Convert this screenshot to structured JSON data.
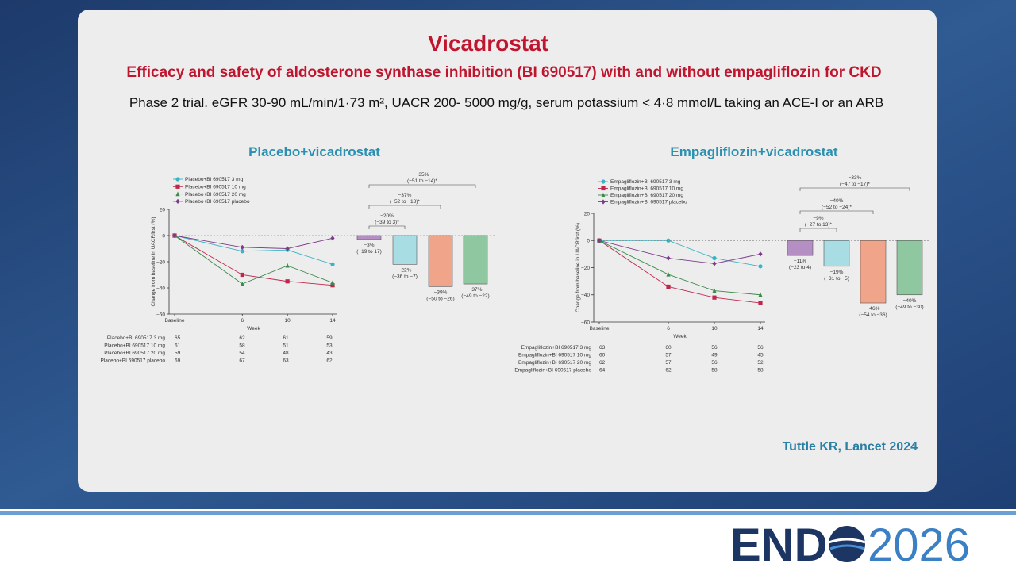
{
  "title": "Vicadrostat",
  "subtitle": "Efficacy and safety of aldosterone synthase inhibition (BI 690517) with and without empagliflozin for CKD",
  "description": "Phase 2 trial. eGFR 30-90 mL/min/1·73 m², UACR 200- 5000 mg/g, serum potassium < 4·8 mmol/L taking an ACE-I or an ARB",
  "citation": "Tuttle KR, Lancet 2024",
  "logo": {
    "left": "END",
    "right": "2026"
  },
  "panels": [
    {
      "heading": "Placebo+vicadrostat",
      "at_risk": [
        {
          "label": "Placebo+BI 690517 3 mg",
          "values": [
            65,
            62,
            61,
            59
          ]
        },
        {
          "label": "Placebo+BI 690517 10 mg",
          "values": [
            61,
            58,
            51,
            53
          ]
        },
        {
          "label": "Placebo+BI 690517 20 mg",
          "values": [
            59,
            54,
            48,
            43
          ]
        },
        {
          "label": "Placebo+BI 690517 placebo",
          "values": [
            69,
            67,
            63,
            62
          ]
        }
      ]
    },
    {
      "heading": "Empagliflozin+vicadrostat",
      "at_risk": [
        {
          "label": "Empagliflozin+BI 690517 3 mg",
          "values": [
            63,
            60,
            56,
            56
          ]
        },
        {
          "label": "Empagliflozin+BI 690517 10 mg",
          "values": [
            60,
            57,
            49,
            45
          ]
        },
        {
          "label": "Empagliflozin+BI 690517 20 mg",
          "values": [
            62,
            57,
            56,
            52
          ]
        },
        {
          "label": "Empagliflozin+BI 690517 placebo",
          "values": [
            64,
            62,
            58,
            58
          ]
        }
      ]
    }
  ],
  "chart_data": [
    {
      "type": "line",
      "x_label": "Week",
      "y_label": "Change from baseline in UACRfirst (%)",
      "x": [
        0,
        6,
        10,
        14
      ],
      "xlim": [
        0,
        14
      ],
      "xticks": [
        {
          "value": 0,
          "label": "Baseline"
        },
        6,
        10,
        14
      ],
      "ylim": [
        -60,
        20
      ],
      "yticks": [
        20,
        0,
        {
          "value": -20,
          "label": "−20"
        },
        {
          "value": -40,
          "label": "−40"
        },
        {
          "value": -60,
          "label": "−60"
        }
      ],
      "series": [
        {
          "name": "Placebo+BI 690517 3 mg",
          "color": "#3bb3c3",
          "values": [
            0,
            -12,
            -11,
            -22
          ]
        },
        {
          "name": "Placebo+BI 690517 10 mg",
          "color": "#c0264b",
          "values": [
            0,
            -30,
            -35,
            -38
          ]
        },
        {
          "name": "Placebo+BI 690517 20 mg",
          "color": "#3a8a4a",
          "values": [
            0,
            -37,
            -23,
            -36
          ]
        },
        {
          "name": "Placebo+BI 690517 placebo",
          "color": "#7b3b8a",
          "values": [
            0,
            -9,
            -10,
            -2
          ]
        }
      ]
    },
    {
      "type": "bar",
      "categories": [
        null,
        null,
        null,
        null
      ],
      "values": [
        -3,
        -22,
        -39,
        -37
      ],
      "value_labels": [
        "−3%",
        "−22%",
        "−39%",
        "−37%"
      ],
      "ci_labels": [
        "(−19 to 17)",
        "(−36 to −7)",
        "(−50 to −26)",
        "(−49 to −22)"
      ],
      "colors": [
        "#b58fc4",
        "#a8dde4",
        "#f0a58a",
        "#8fc7a0"
      ],
      "ylim": [
        -60,
        20
      ],
      "comparisons": [
        {
          "label": "−20%",
          "ci": "(−39 to 3)*"
        },
        {
          "label": "−37%",
          "ci": "(−52 to −18)*"
        },
        {
          "label": "−35%",
          "ci": "(−51 to −14)*"
        }
      ]
    },
    {
      "type": "line",
      "x_label": "Week",
      "y_label": "Change from baseline in UACRfirst (%)",
      "x": [
        0,
        6,
        10,
        14
      ],
      "xlim": [
        0,
        14
      ],
      "xticks": [
        {
          "value": 0,
          "label": "Baseline"
        },
        6,
        10,
        14
      ],
      "ylim": [
        -60,
        20
      ],
      "yticks": [
        20,
        0,
        {
          "value": -20,
          "label": "−20"
        },
        {
          "value": -40,
          "label": "−40"
        },
        {
          "value": -60,
          "label": "−60"
        }
      ],
      "series": [
        {
          "name": "Empagliflozin+BI 690517 3 mg",
          "color": "#3bb3c3",
          "values": [
            0,
            0,
            -13,
            -19
          ]
        },
        {
          "name": "Empagliflozin+BI 690517 10 mg",
          "color": "#c0264b",
          "values": [
            0,
            -34,
            -42,
            -46
          ]
        },
        {
          "name": "Empagliflozin+BI 690517 20 mg",
          "color": "#3a8a4a",
          "values": [
            0,
            -25,
            -37,
            -40
          ]
        },
        {
          "name": "Empagliflozin+BI 690517 placebo",
          "color": "#7b3b8a",
          "values": [
            0,
            -13,
            -17,
            -10
          ]
        }
      ]
    },
    {
      "type": "bar",
      "categories": [
        null,
        null,
        null,
        null
      ],
      "values": [
        -11,
        -19,
        -46,
        -40
      ],
      "value_labels": [
        "−11%",
        "−19%",
        "−46%",
        "−40%"
      ],
      "ci_labels": [
        "(−23 to 4)",
        "(−31 to −5)",
        "(−54 to −36)",
        "(−49 to −30)"
      ],
      "colors": [
        "#b58fc4",
        "#a8dde4",
        "#f0a58a",
        "#8fc7a0"
      ],
      "ylim": [
        -60,
        20
      ],
      "comparisons": [
        {
          "label": "−9%",
          "ci": "(−27 to 13)*"
        },
        {
          "label": "−40%",
          "ci": "(−52 to −24)*"
        },
        {
          "label": "−33%",
          "ci": "(−47 to −17)*"
        }
      ]
    }
  ]
}
